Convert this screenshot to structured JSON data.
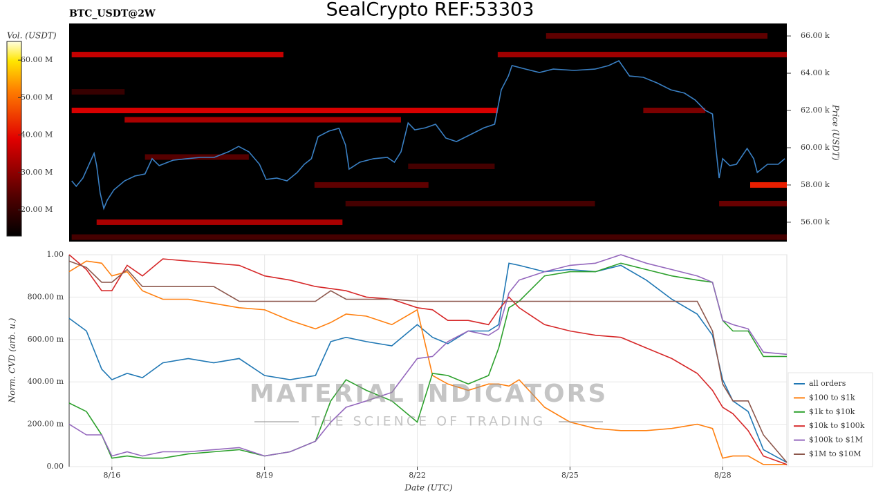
{
  "title": "SealCrypto REF:53303",
  "watermark": {
    "title": "MATERIAL INDICATORS",
    "subtitle": "THE SCIENCE OF TRADING"
  },
  "chart_data": [
    {
      "type": "heatmap",
      "title": "BTC_USDT@2W",
      "y_label": "Price (USDT)",
      "xlim": [
        15.16,
        29.26
      ],
      "ylim": [
        54960,
        66670
      ],
      "yticks": [
        {
          "value": 56000,
          "label": "56.00 k"
        },
        {
          "value": 58000,
          "label": "58.00 k"
        },
        {
          "value": 60000,
          "label": "60.00 k"
        },
        {
          "value": 62000,
          "label": "62.00 k"
        },
        {
          "value": 64000,
          "label": "64.00 k"
        },
        {
          "value": 66000,
          "label": "66.00 k"
        }
      ],
      "colorbar": {
        "label": "Vol. (USDT)",
        "clim": [
          13000000,
          65000000
        ],
        "ticks": [
          {
            "value": 20000000,
            "label": "20.00 M"
          },
          {
            "value": 30000000,
            "label": "30.00 M"
          },
          {
            "value": 40000000,
            "label": "40.00 M"
          },
          {
            "value": 50000000,
            "label": "50.00 M"
          },
          {
            "value": 60000000,
            "label": "60.00 M"
          }
        ]
      },
      "cells": {
        "price": [
          55200,
          56000,
          57000,
          57000,
          58000,
          58000,
          59000,
          59500,
          61500,
          62000,
          62000,
          63000,
          65000,
          65000,
          66000
        ],
        "x0": [
          15.21,
          15.7,
          20.59,
          27.93,
          19.98,
          28.54,
          21.82,
          16.65,
          16.25,
          15.21,
          26.44,
          15.21,
          15.21,
          23.58,
          24.53
        ],
        "x1": [
          29.26,
          20.53,
          25.49,
          29.26,
          22.22,
          29.26,
          23.52,
          18.69,
          21.68,
          23.58,
          27.66,
          16.25,
          19.37,
          29.26,
          28.88
        ],
        "values": [
          22000000,
          33000000,
          22000000,
          26000000,
          25000000,
          42000000,
          22000000,
          24000000,
          33000000,
          38000000,
          28000000,
          20000000,
          36000000,
          32000000,
          25000000
        ]
      },
      "line": {
        "color": "#3a80c4",
        "x": [
          15.21,
          15.3,
          15.43,
          15.57,
          15.65,
          15.7,
          15.77,
          15.84,
          15.91,
          16.04,
          16.25,
          16.45,
          16.65,
          16.79,
          16.93,
          17.2,
          17.47,
          17.74,
          18.01,
          18.29,
          18.49,
          18.69,
          18.9,
          19.03,
          19.24,
          19.44,
          19.64,
          19.78,
          19.92,
          20.05,
          20.26,
          20.46,
          20.59,
          20.66,
          20.87,
          21.14,
          21.41,
          21.55,
          21.68,
          21.82,
          21.95,
          22.16,
          22.36,
          22.56,
          22.77,
          23.04,
          23.31,
          23.52,
          23.65,
          23.79,
          23.86,
          24.13,
          24.4,
          24.67,
          25.08,
          25.49,
          25.76,
          25.96,
          26.17,
          26.44,
          26.71,
          26.98,
          27.25,
          27.46,
          27.66,
          27.8,
          27.86,
          27.93,
          28.0,
          28.14,
          28.27,
          28.48,
          28.61,
          28.68,
          28.88,
          29.09,
          29.22
        ],
        "values": [
          58220,
          57930,
          58370,
          59220,
          59700,
          59040,
          57560,
          56740,
          57190,
          57740,
          58220,
          58480,
          58590,
          59410,
          59040,
          59330,
          59410,
          59480,
          59480,
          59780,
          60070,
          59780,
          59110,
          58300,
          58370,
          58220,
          58670,
          59110,
          59410,
          60590,
          60890,
          61040,
          60150,
          58850,
          59220,
          59410,
          59480,
          59220,
          59780,
          61330,
          60960,
          61070,
          61260,
          60520,
          60330,
          60700,
          61070,
          61260,
          63110,
          63850,
          64410,
          64220,
          64040,
          64220,
          64150,
          64220,
          64410,
          64670,
          63850,
          63780,
          63480,
          63110,
          62930,
          62560,
          62000,
          61810,
          60150,
          58370,
          59410,
          59040,
          59110,
          59960,
          59410,
          58670,
          59110,
          59110,
          59410
        ]
      }
    },
    {
      "type": "line",
      "x_label": "Date (UTC)",
      "y_label": "Norm. CVD (arb. u.)",
      "xlim": [
        15.16,
        29.26
      ],
      "xticks": [
        {
          "value": 16,
          "label": "8/16"
        },
        {
          "value": 19,
          "label": "8/19"
        },
        {
          "value": 22,
          "label": "8/22"
        },
        {
          "value": 25,
          "label": "8/25"
        },
        {
          "value": 28,
          "label": "8/28"
        }
      ],
      "ylim": [
        0,
        1
      ],
      "yticks": [
        {
          "value": 0,
          "label": "0.00"
        },
        {
          "value": 0.2,
          "label": "200.00 m"
        },
        {
          "value": 0.4,
          "label": "400.00 m"
        },
        {
          "value": 0.6,
          "label": "600.00 m"
        },
        {
          "value": 0.8,
          "label": "800.00 m"
        },
        {
          "value": 1,
          "label": "1.00"
        }
      ],
      "grid": true,
      "legend": "right",
      "x": [
        15.16,
        15.5,
        15.8,
        16.0,
        16.3,
        16.6,
        17.0,
        17.5,
        18.0,
        18.5,
        19.0,
        19.5,
        20.0,
        20.3,
        20.6,
        21.0,
        21.5,
        22.0,
        22.3,
        22.6,
        23.0,
        23.4,
        23.6,
        23.8,
        24.0,
        24.5,
        25.0,
        25.5,
        26.0,
        26.5,
        27.0,
        27.5,
        27.8,
        28.0,
        28.2,
        28.5,
        28.8,
        29.26
      ],
      "series": [
        {
          "name": "all orders",
          "color": "#1f77b4",
          "values": [
            0.7,
            0.64,
            0.46,
            0.41,
            0.44,
            0.42,
            0.49,
            0.51,
            0.49,
            0.51,
            0.43,
            0.41,
            0.43,
            0.59,
            0.61,
            0.59,
            0.57,
            0.67,
            0.61,
            0.58,
            0.64,
            0.64,
            0.67,
            0.96,
            0.95,
            0.92,
            0.93,
            0.92,
            0.95,
            0.88,
            0.79,
            0.72,
            0.62,
            0.41,
            0.31,
            0.26,
            0.08,
            0.02
          ]
        },
        {
          "name": "$100 to $1k",
          "color": "#ff7f0e",
          "values": [
            0.92,
            0.97,
            0.96,
            0.9,
            0.92,
            0.83,
            0.79,
            0.79,
            0.77,
            0.75,
            0.74,
            0.69,
            0.65,
            0.68,
            0.72,
            0.71,
            0.67,
            0.74,
            0.43,
            0.39,
            0.36,
            0.39,
            0.39,
            0.38,
            0.41,
            0.28,
            0.21,
            0.18,
            0.17,
            0.17,
            0.18,
            0.2,
            0.18,
            0.04,
            0.05,
            0.05,
            0.01,
            0.01
          ]
        },
        {
          "name": "$1k to $10k",
          "color": "#2ca02c",
          "values": [
            0.3,
            0.26,
            0.15,
            0.04,
            0.05,
            0.04,
            0.04,
            0.06,
            0.07,
            0.08,
            0.05,
            0.07,
            0.12,
            0.31,
            0.41,
            0.36,
            0.31,
            0.21,
            0.44,
            0.43,
            0.39,
            0.43,
            0.56,
            0.75,
            0.78,
            0.9,
            0.92,
            0.92,
            0.96,
            0.93,
            0.9,
            0.88,
            0.87,
            0.69,
            0.64,
            0.64,
            0.52,
            0.52
          ]
        },
        {
          "name": "$10k to $100k",
          "color": "#d62728",
          "values": [
            1.0,
            0.93,
            0.83,
            0.83,
            0.95,
            0.9,
            0.98,
            0.97,
            0.96,
            0.95,
            0.9,
            0.88,
            0.85,
            0.84,
            0.83,
            0.8,
            0.79,
            0.75,
            0.74,
            0.69,
            0.69,
            0.67,
            0.74,
            0.8,
            0.75,
            0.67,
            0.64,
            0.62,
            0.61,
            0.56,
            0.51,
            0.44,
            0.36,
            0.28,
            0.25,
            0.17,
            0.05,
            0.01
          ]
        },
        {
          "name": "$100k to $1M",
          "color": "#9467bd",
          "values": [
            0.2,
            0.15,
            0.15,
            0.05,
            0.07,
            0.05,
            0.07,
            0.07,
            0.08,
            0.09,
            0.05,
            0.07,
            0.12,
            0.21,
            0.28,
            0.31,
            0.35,
            0.51,
            0.52,
            0.59,
            0.64,
            0.62,
            0.65,
            0.82,
            0.88,
            0.92,
            0.95,
            0.96,
            1.0,
            0.96,
            0.93,
            0.9,
            0.87,
            0.69,
            0.67,
            0.65,
            0.54,
            0.53
          ]
        },
        {
          "name": "$1M to $10M",
          "color": "#8c564b",
          "values": [
            0.97,
            0.94,
            0.87,
            0.87,
            0.93,
            0.85,
            0.85,
            0.85,
            0.85,
            0.78,
            0.78,
            0.78,
            0.78,
            0.83,
            0.79,
            0.79,
            0.79,
            0.78,
            0.78,
            0.78,
            0.78,
            0.78,
            0.78,
            0.78,
            0.78,
            0.78,
            0.78,
            0.78,
            0.78,
            0.78,
            0.78,
            0.78,
            0.64,
            0.39,
            0.31,
            0.31,
            0.15,
            0.02
          ]
        }
      ]
    }
  ]
}
